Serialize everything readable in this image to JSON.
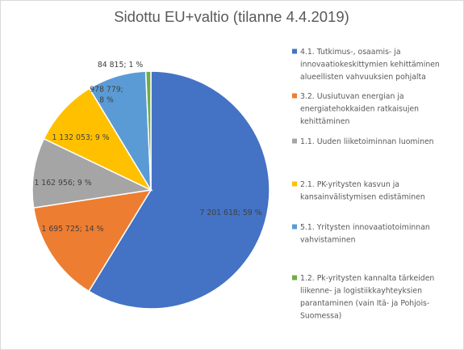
{
  "chart_data": {
    "type": "pie",
    "title": "Sidottu EU+valtio (tilanne 4.4.2019)",
    "slices": [
      {
        "name": "4.1. Tutkimus-, osaamis- ja innovaatiokeskittymien kehittäminen alueellisten vahvuuksien pohjalta",
        "value": 7201618,
        "percent": 59,
        "color": "#4472C4",
        "label_lines": [
          "7 201 618; 59 %"
        ]
      },
      {
        "name": "3.2. Uusiutuvan energian ja energiatehokkaiden ratkaisujen kehittäminen",
        "value": 1695725,
        "percent": 14,
        "color": "#ED7D31",
        "label_lines": [
          "1 695 725; 14 %"
        ]
      },
      {
        "name": "1.1. Uuden liiketoiminnan luominen",
        "value": 1162956,
        "percent": 9,
        "color": "#A5A5A5",
        "label_lines": [
          "1 162 956; 9 %"
        ]
      },
      {
        "name": "2.1. PK-yritysten kasvun ja kansainvälistymisen edistäminen",
        "value": 1132053,
        "percent": 9,
        "color": "#FFC000",
        "label_lines": [
          "1 132 053; 9 %"
        ]
      },
      {
        "name": "5.1. Yritysten innovaatiotoiminnan vahvistaminen",
        "value": 978779,
        "percent": 8,
        "color": "#5B9BD5",
        "label_lines": [
          "978 779;",
          "8 %"
        ]
      },
      {
        "name": "1.2. Pk-yritysten kannalta tärkeiden liikenne- ja logistiikkayhteyksien parantaminen (vain Itä- ja Pohjois-Suomessa)",
        "value": 84815,
        "percent": 1,
        "color": "#70AD47",
        "label_lines": [
          "84 815; 1 %"
        ]
      }
    ],
    "legend": {
      "placement": "right",
      "entries": [
        {
          "lines": [
            "4.1. Tutkimus-, osaamis- ja",
            "innovaatiokeskittymien kehittäminen",
            "alueellisten vahvuuksien pohjalta"
          ]
        },
        {
          "lines": [
            "3.2. Uusiutuvan energian ja",
            "energiatehokkaiden ratkaisujen",
            "kehittäminen"
          ]
        },
        {
          "lines": [
            "1.1. Uuden liiketoiminnan luominen"
          ]
        },
        {
          "lines": [
            "2.1. PK-yritysten kasvun ja",
            "kansainvälistymisen edistäminen"
          ]
        },
        {
          "lines": [
            "5.1. Yritysten innovaatiotoiminnan",
            "vahvistaminen"
          ]
        },
        {
          "lines": [
            "1.2. Pk-yritysten kannalta tärkeiden",
            "liikenne- ja logistiikkayhteyksien",
            "parantaminen (vain Itä- ja Pohjois-",
            "Suomessa)"
          ]
        }
      ]
    }
  }
}
